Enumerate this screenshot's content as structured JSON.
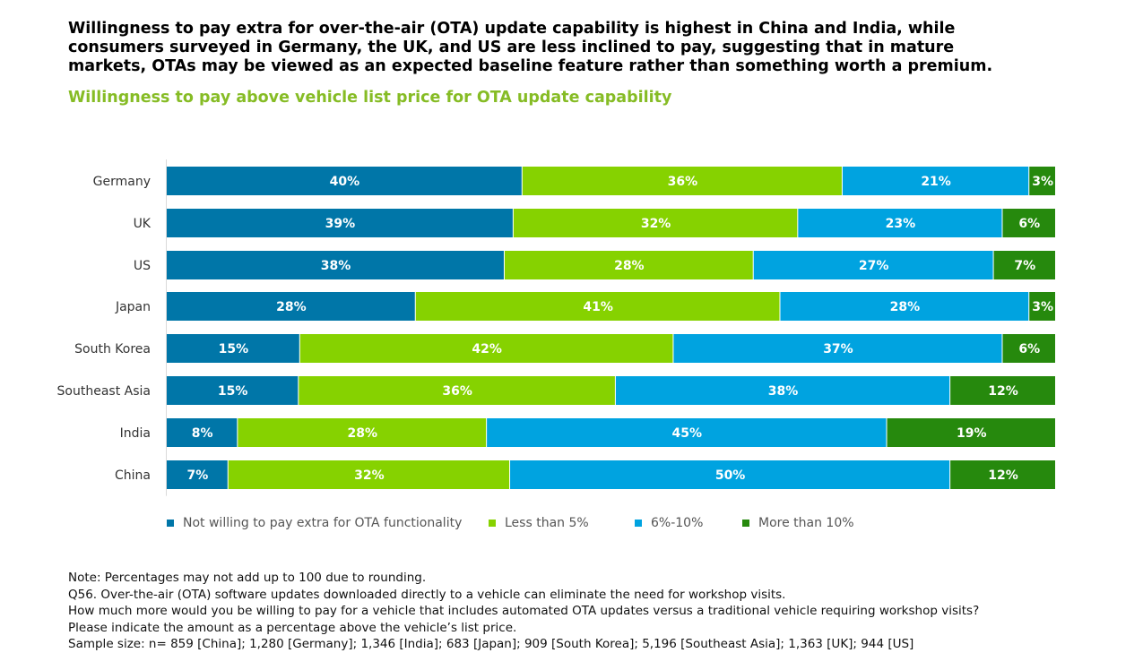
{
  "headline": "Willingness to pay extra for over-the-air (OTA) update capability is highest in China and India, while consumers surveyed in Germany, the UK, and US are less inclined to pay, suggesting that in mature markets, OTAs may be viewed as an expected baseline feature rather than something worth a premium.",
  "colors": {
    "subtitle": "#86bc25",
    "not_willing": "#0076a8",
    "lt5": "#86d200",
    "six_ten": "#00a3e0",
    "gt10": "#26890d",
    "label_text": "#333333",
    "bar_text": "#ffffff"
  },
  "chart_data": {
    "type": "bar",
    "orientation": "horizontal",
    "stacked": true,
    "title": "Willingness to pay above vehicle list price for OTA update capability",
    "categories": [
      "Germany",
      "UK",
      "US",
      "Japan",
      "South Korea",
      "Southeast Asia",
      "India",
      "China"
    ],
    "series": [
      {
        "name": "Not willing to pay extra for OTA functionality",
        "color": "#0076a8",
        "values": [
          40,
          39,
          38,
          28,
          15,
          15,
          8,
          7
        ]
      },
      {
        "name": "Less than 5%",
        "color": "#86d200",
        "values": [
          36,
          32,
          28,
          41,
          42,
          36,
          28,
          32
        ]
      },
      {
        "name": "6%-10%",
        "color": "#00a3e0",
        "values": [
          21,
          23,
          27,
          28,
          37,
          38,
          45,
          50
        ]
      },
      {
        "name": "More than 10%",
        "color": "#26890d",
        "values": [
          3,
          6,
          7,
          3,
          6,
          12,
          19,
          12
        ]
      }
    ],
    "value_suffix": "%",
    "grid": false,
    "legend_position": "bottom"
  },
  "notes": [
    "Note: Percentages may not add up to 100 due to rounding.",
    "Q56. Over-the-air (OTA) software updates downloaded directly to a vehicle can eliminate the need for workshop visits.",
    "How much more would you be willing to pay for a vehicle that includes automated OTA updates versus a traditional vehicle requiring workshop visits?",
    "Please indicate the amount as a percentage above the vehicle’s list price.",
    "Sample size: n= 859 [China]; 1,280 [Germany]; 1,346 [India]; 683 [Japan]; 909 [South Korea]; 5,196 [Southeast Asia]; 1,363 [UK]; 944 [US]"
  ]
}
